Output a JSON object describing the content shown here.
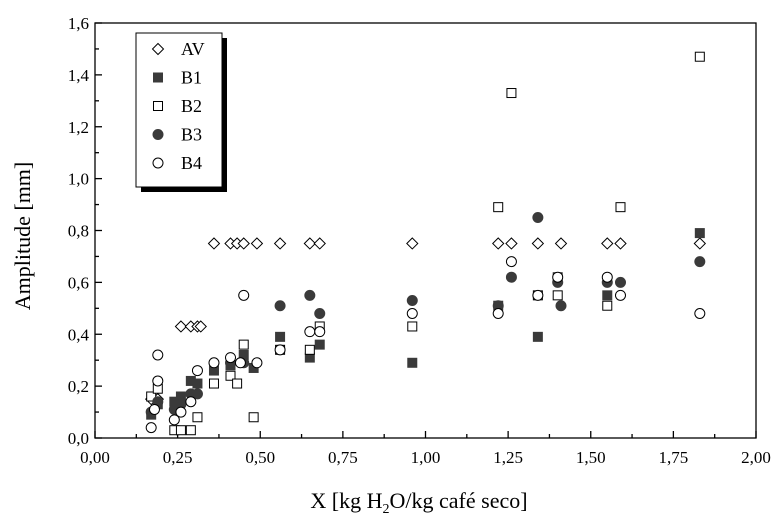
{
  "chart_data": {
    "type": "scatter",
    "xlabel": {
      "pre": "X [kg H",
      "sub": "2",
      "post": "O/kg café seco]"
    },
    "ylabel": "Amplitude [mm]",
    "xlim": [
      0,
      2.0
    ],
    "ylim": [
      0,
      1.6
    ],
    "x_ticks": [
      "0,00",
      "0,25",
      "0,50",
      "0,75",
      "1,00",
      "1,25",
      "1,50",
      "1,75",
      "2,00"
    ],
    "y_ticks": [
      "0,0",
      "0,2",
      "0,4",
      "0,6",
      "0,8",
      "1,0",
      "1,2",
      "1,4",
      "1,6"
    ],
    "legend_position": "top-left",
    "grid": false,
    "series": [
      {
        "name": "AV",
        "marker": "diamond-open",
        "points": [
          [
            0.17,
            0.15
          ],
          [
            0.19,
            0.15
          ],
          [
            0.26,
            0.43
          ],
          [
            0.29,
            0.43
          ],
          [
            0.31,
            0.43
          ],
          [
            0.32,
            0.43
          ],
          [
            0.36,
            0.75
          ],
          [
            0.41,
            0.75
          ],
          [
            0.43,
            0.75
          ],
          [
            0.45,
            0.75
          ],
          [
            0.49,
            0.75
          ],
          [
            0.56,
            0.75
          ],
          [
            0.65,
            0.75
          ],
          [
            0.68,
            0.75
          ],
          [
            0.96,
            0.75
          ],
          [
            1.22,
            0.75
          ],
          [
            1.26,
            0.75
          ],
          [
            1.34,
            0.75
          ],
          [
            1.41,
            0.75
          ],
          [
            1.55,
            0.75
          ],
          [
            1.59,
            0.75
          ],
          [
            1.83,
            0.75
          ]
        ]
      },
      {
        "name": "B1",
        "marker": "square-filled",
        "points": [
          [
            0.17,
            0.09
          ],
          [
            0.19,
            0.13
          ],
          [
            0.24,
            0.14
          ],
          [
            0.26,
            0.16
          ],
          [
            0.29,
            0.22
          ],
          [
            0.31,
            0.21
          ],
          [
            0.36,
            0.26
          ],
          [
            0.41,
            0.28
          ],
          [
            0.45,
            0.32
          ],
          [
            0.48,
            0.27
          ],
          [
            0.56,
            0.39
          ],
          [
            0.65,
            0.31
          ],
          [
            0.68,
            0.36
          ],
          [
            0.96,
            0.29
          ],
          [
            1.22,
            0.51
          ],
          [
            1.34,
            0.39
          ],
          [
            1.4,
            0.62
          ],
          [
            1.55,
            0.55
          ],
          [
            1.83,
            0.79
          ]
        ]
      },
      {
        "name": "B2",
        "marker": "square-open",
        "points": [
          [
            0.17,
            0.16
          ],
          [
            0.19,
            0.19
          ],
          [
            0.24,
            0.03
          ],
          [
            0.26,
            0.03
          ],
          [
            0.29,
            0.03
          ],
          [
            0.31,
            0.08
          ],
          [
            0.36,
            0.21
          ],
          [
            0.41,
            0.24
          ],
          [
            0.43,
            0.21
          ],
          [
            0.45,
            0.36
          ],
          [
            0.48,
            0.08
          ],
          [
            0.56,
            0.34
          ],
          [
            0.65,
            0.34
          ],
          [
            0.68,
            0.43
          ],
          [
            0.96,
            0.43
          ],
          [
            1.22,
            0.89
          ],
          [
            1.26,
            1.33
          ],
          [
            1.34,
            0.55
          ],
          [
            1.4,
            0.55
          ],
          [
            1.55,
            0.51
          ],
          [
            1.59,
            0.89
          ],
          [
            1.83,
            1.47
          ]
        ]
      },
      {
        "name": "B3",
        "marker": "circle-filled",
        "points": [
          [
            0.17,
            0.1
          ],
          [
            0.19,
            0.14
          ],
          [
            0.24,
            0.11
          ],
          [
            0.26,
            0.13
          ],
          [
            0.29,
            0.17
          ],
          [
            0.31,
            0.17
          ],
          [
            0.41,
            0.29
          ],
          [
            0.45,
            0.29
          ],
          [
            0.56,
            0.51
          ],
          [
            0.65,
            0.55
          ],
          [
            0.68,
            0.48
          ],
          [
            0.96,
            0.53
          ],
          [
            1.22,
            0.51
          ],
          [
            1.26,
            0.62
          ],
          [
            1.34,
            0.85
          ],
          [
            1.4,
            0.6
          ],
          [
            1.41,
            0.51
          ],
          [
            1.55,
            0.6
          ],
          [
            1.59,
            0.6
          ],
          [
            1.83,
            0.68
          ]
        ]
      },
      {
        "name": "B4",
        "marker": "circle-open",
        "points": [
          [
            0.17,
            0.04
          ],
          [
            0.18,
            0.11
          ],
          [
            0.19,
            0.32
          ],
          [
            0.19,
            0.22
          ],
          [
            0.24,
            0.07
          ],
          [
            0.26,
            0.1
          ],
          [
            0.29,
            0.14
          ],
          [
            0.31,
            0.26
          ],
          [
            0.36,
            0.29
          ],
          [
            0.41,
            0.31
          ],
          [
            0.44,
            0.29
          ],
          [
            0.45,
            0.55
          ],
          [
            0.49,
            0.29
          ],
          [
            0.56,
            0.34
          ],
          [
            0.65,
            0.41
          ],
          [
            0.68,
            0.41
          ],
          [
            0.96,
            0.48
          ],
          [
            1.22,
            0.48
          ],
          [
            1.26,
            0.68
          ],
          [
            1.34,
            0.55
          ],
          [
            1.4,
            0.62
          ],
          [
            1.55,
            0.62
          ],
          [
            1.59,
            0.55
          ],
          [
            1.83,
            0.48
          ]
        ]
      }
    ]
  }
}
